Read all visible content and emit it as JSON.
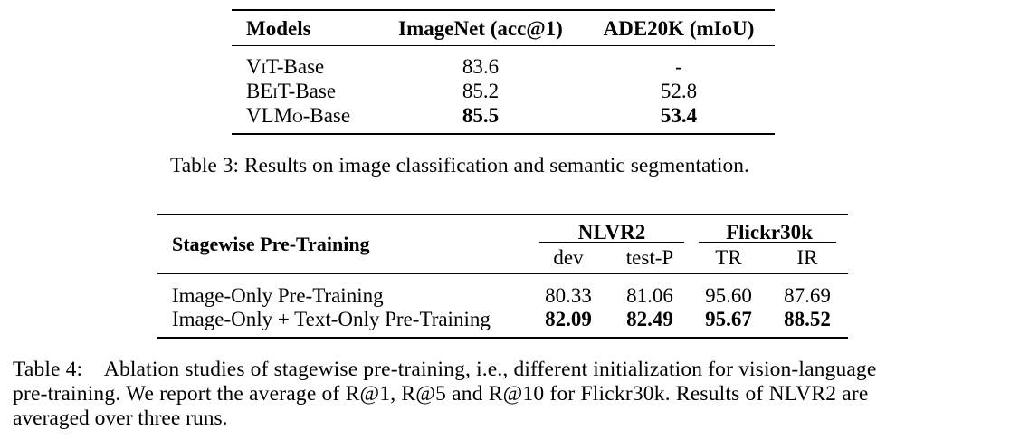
{
  "table3": {
    "headers": {
      "models": "Models",
      "imagenet": "ImageNet (acc@1)",
      "ade20k": "ADE20K (mIoU)"
    },
    "rows": [
      {
        "model_a": "V",
        "model_b": "i",
        "model_c": "T-Base",
        "imagenet": "83.6",
        "ade20k": "-"
      },
      {
        "model_a": "BE",
        "model_b": "i",
        "model_c": "T-Base",
        "imagenet": "85.2",
        "ade20k": "52.8"
      },
      {
        "model_a": "VLM",
        "model_b": "o",
        "model_c": "-Base",
        "imagenet": "85.5",
        "ade20k": "53.4"
      }
    ],
    "caption": "Table 3: Results on image classification and semantic segmentation."
  },
  "table4": {
    "headers": {
      "stagewise": "Stagewise Pre-Training",
      "nlvr2": "NLVR2",
      "flickr": "Flickr30k",
      "dev": "dev",
      "testp": "test-P",
      "tr": "TR",
      "ir": "IR"
    },
    "rows": [
      {
        "name": "Image-Only Pre-Training",
        "dev": "80.33",
        "testp": "81.06",
        "tr": "95.60",
        "ir": "87.69"
      },
      {
        "name": "Image-Only + Text-Only Pre-Training",
        "dev": "82.09",
        "testp": "82.49",
        "tr": "95.67",
        "ir": "88.52"
      }
    ],
    "caption_line1": "Table 4: Ablation studies of stagewise pre-training, i.e., different initialization for vision-language",
    "caption_line2": "pre-training. We report the average of R@1, R@5 and R@10 for Flickr30k. Results of NLVR2 are",
    "caption_line3": "averaged over three runs."
  }
}
